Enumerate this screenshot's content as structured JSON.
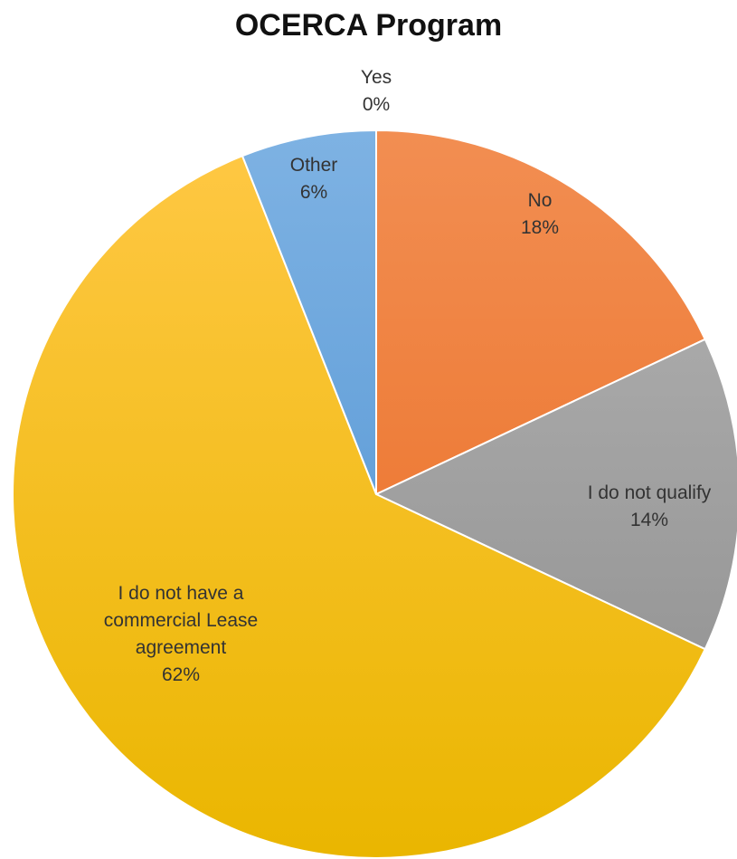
{
  "chart_data": {
    "type": "pie",
    "title": "OCERCA Program",
    "slices": [
      {
        "label_lines": [
          "Yes"
        ],
        "value": 0,
        "display": "0%",
        "colors": [
          "#5b9bd5",
          "#5b9bd5"
        ]
      },
      {
        "label_lines": [
          "No"
        ],
        "value": 18,
        "display": "18%",
        "colors": [
          "#f28e52",
          "#e96a1e"
        ]
      },
      {
        "label_lines": [
          "I do not qualify"
        ],
        "value": 14,
        "display": "14%",
        "colors": [
          "#b4b4b4",
          "#8c8c8c"
        ]
      },
      {
        "label_lines": [
          "I do not have a",
          "commercial Lease",
          "agreement"
        ],
        "value": 62,
        "display": "62%",
        "colors": [
          "#ffc845",
          "#eab600"
        ]
      },
      {
        "label_lines": [
          "Other"
        ],
        "value": 6,
        "display": "6%",
        "colors": [
          "#7eb2e3",
          "#4a8fd0"
        ]
      }
    ],
    "start": "12 o'clock",
    "direction": "clockwise",
    "legend": "none"
  }
}
